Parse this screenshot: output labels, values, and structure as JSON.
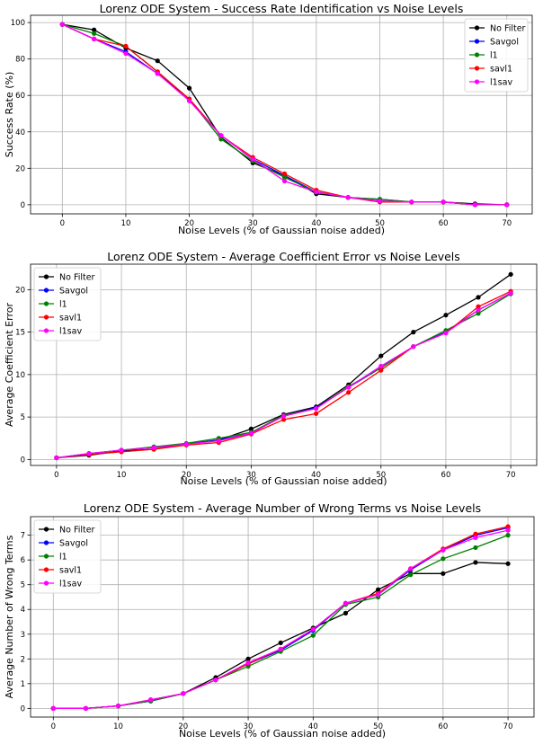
{
  "chart_data": [
    {
      "type": "line",
      "title": "Lorenz ODE System - Success Rate Identification vs Noise Levels",
      "xlabel": "Noise Levels (% of Gaussian noise added)",
      "ylabel": "Success Rate (%)",
      "x": [
        0,
        5,
        10,
        15,
        20,
        25,
        30,
        35,
        40,
        45,
        50,
        55,
        60,
        65,
        70
      ],
      "xlim": [
        -5,
        74
      ],
      "ylim": [
        -5,
        104
      ],
      "xticks": [
        0,
        10,
        20,
        30,
        40,
        50,
        60,
        70
      ],
      "yticks": [
        0,
        20,
        40,
        60,
        80,
        100
      ],
      "grid": true,
      "legend": "top-right",
      "series": [
        {
          "name": "No Filter",
          "color": "#000000",
          "values": [
            99,
            96,
            86,
            79,
            64,
            37,
            23,
            16,
            6,
            4,
            2,
            1.5,
            1.5,
            0.5,
            0
          ]
        },
        {
          "name": "Savgol",
          "color": "#0000ff",
          "values": [
            99,
            91,
            84,
            72,
            58,
            38,
            25,
            16,
            7,
            4,
            3,
            1.5,
            1.5,
            0,
            0
          ]
        },
        {
          "name": "l1",
          "color": "#008000",
          "values": [
            99,
            94,
            87,
            73,
            58,
            36,
            24,
            15,
            7,
            4,
            3,
            1.5,
            1.5,
            0,
            0
          ]
        },
        {
          "name": "savl1",
          "color": "#ff0000",
          "values": [
            99,
            91,
            87,
            73,
            58,
            38,
            26,
            17,
            8,
            4,
            1.5,
            1.5,
            1.5,
            0,
            0
          ]
        },
        {
          "name": "l1sav",
          "color": "#ff00ff",
          "values": [
            99,
            91,
            83,
            72,
            57,
            38,
            25,
            13,
            7,
            4,
            2,
            1.5,
            1.5,
            0,
            0
          ]
        }
      ]
    },
    {
      "type": "line",
      "title": "Lorenz ODE System - Average Coefficient Error vs Noise Levels",
      "xlabel": "Noise Levels (% of Gaussian noise added)",
      "ylabel": "Average Coefficient Error",
      "x": [
        0,
        5,
        10,
        15,
        20,
        25,
        30,
        35,
        40,
        45,
        50,
        55,
        60,
        65,
        70
      ],
      "xlim": [
        -4,
        74
      ],
      "ylim": [
        -0.7,
        23
      ],
      "xticks": [
        0,
        10,
        20,
        30,
        40,
        50,
        60,
        70
      ],
      "yticks": [
        0,
        5,
        10,
        15,
        20
      ],
      "grid": true,
      "legend": "top-left",
      "series": [
        {
          "name": "No Filter",
          "color": "#000000",
          "values": [
            0.2,
            0.5,
            1.0,
            1.2,
            1.8,
            2.3,
            3.6,
            5.3,
            6.2,
            8.8,
            12.2,
            15.0,
            17.0,
            19.1,
            21.8
          ]
        },
        {
          "name": "Savgol",
          "color": "#0000ff",
          "values": [
            0.2,
            0.7,
            1.1,
            1.4,
            1.8,
            2.3,
            3.1,
            5.2,
            6.1,
            8.5,
            10.8,
            13.3,
            15.0,
            17.6,
            19.6
          ]
        },
        {
          "name": "l1",
          "color": "#008000",
          "values": [
            0.2,
            0.7,
            1.1,
            1.5,
            1.9,
            2.5,
            3.2,
            5.2,
            6.0,
            8.6,
            10.8,
            13.3,
            15.2,
            17.2,
            19.5
          ]
        },
        {
          "name": "savl1",
          "color": "#ff0000",
          "values": [
            0.2,
            0.6,
            0.9,
            1.2,
            1.7,
            2.0,
            3.0,
            4.7,
            5.4,
            7.9,
            10.5,
            13.3,
            14.9,
            18.0,
            19.8
          ]
        },
        {
          "name": "l1sav",
          "color": "#ff00ff",
          "values": [
            0.2,
            0.7,
            1.1,
            1.4,
            1.8,
            2.2,
            3.1,
            5.1,
            6.0,
            8.5,
            11.0,
            13.3,
            14.9,
            17.6,
            19.6
          ]
        }
      ]
    },
    {
      "type": "line",
      "title": "Lorenz ODE System - Average Number of Wrong Terms vs Noise Levels",
      "xlabel": "Noise Levels (% of Gaussian noise added)",
      "ylabel": "Average Number of Wrong Terms",
      "x": [
        0,
        5,
        10,
        15,
        20,
        25,
        30,
        35,
        40,
        45,
        50,
        55,
        60,
        65,
        70
      ],
      "xlim": [
        -3.5,
        74
      ],
      "ylim": [
        -0.35,
        7.75
      ],
      "xticks": [
        0,
        10,
        20,
        30,
        40,
        50,
        60,
        70
      ],
      "yticks": [
        0,
        1,
        2,
        3,
        4,
        5,
        6,
        7
      ],
      "grid": true,
      "legend": "top-left",
      "series": [
        {
          "name": "No Filter",
          "color": "#000000",
          "values": [
            0,
            0,
            0.1,
            0.3,
            0.6,
            1.25,
            2.0,
            2.65,
            3.25,
            3.85,
            4.8,
            5.45,
            5.45,
            5.9,
            5.85
          ]
        },
        {
          "name": "Savgol",
          "color": "#0000ff",
          "values": [
            0,
            0,
            0.1,
            0.3,
            0.6,
            1.15,
            1.8,
            2.35,
            3.15,
            4.25,
            4.6,
            5.6,
            6.4,
            7.0,
            7.3
          ]
        },
        {
          "name": "l1",
          "color": "#008000",
          "values": [
            0,
            0,
            0.1,
            0.3,
            0.6,
            1.15,
            1.7,
            2.3,
            2.95,
            4.2,
            4.5,
            5.4,
            6.05,
            6.5,
            7.0
          ]
        },
        {
          "name": "savl1",
          "color": "#ff0000",
          "values": [
            0,
            0,
            0.1,
            0.35,
            0.6,
            1.15,
            1.8,
            2.4,
            3.2,
            4.25,
            4.65,
            5.65,
            6.45,
            7.05,
            7.35
          ]
        },
        {
          "name": "l1sav",
          "color": "#ff00ff",
          "values": [
            0,
            0,
            0.1,
            0.35,
            0.6,
            1.15,
            1.85,
            2.4,
            3.2,
            4.25,
            4.6,
            5.65,
            6.4,
            6.9,
            7.2
          ]
        }
      ]
    }
  ]
}
